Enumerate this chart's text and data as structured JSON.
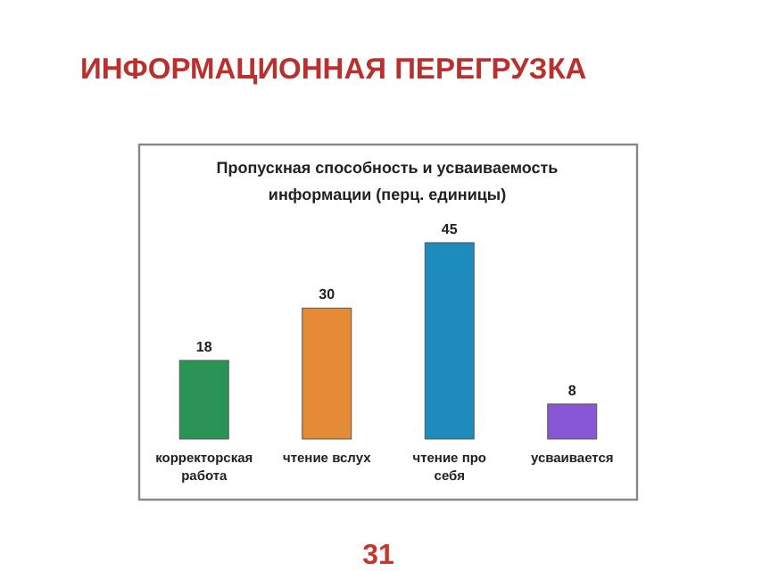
{
  "chart_data": {
    "type": "bar",
    "title": "ИНФОРМАЦИОННАЯ ПЕРЕГРУЗКА",
    "subtitle": "Пропускная способность и усваиваемость информации (перц. единицы)",
    "categories": [
      "корректорская работа",
      "чтение вслух",
      "чтение про себя",
      "усваивается"
    ],
    "values": [
      18,
      30,
      45,
      8
    ],
    "colors": [
      "#2a9457",
      "#e58a35",
      "#1d8cbc",
      "#8656d4"
    ],
    "data_labels": true,
    "annotations": [
      "31"
    ]
  }
}
